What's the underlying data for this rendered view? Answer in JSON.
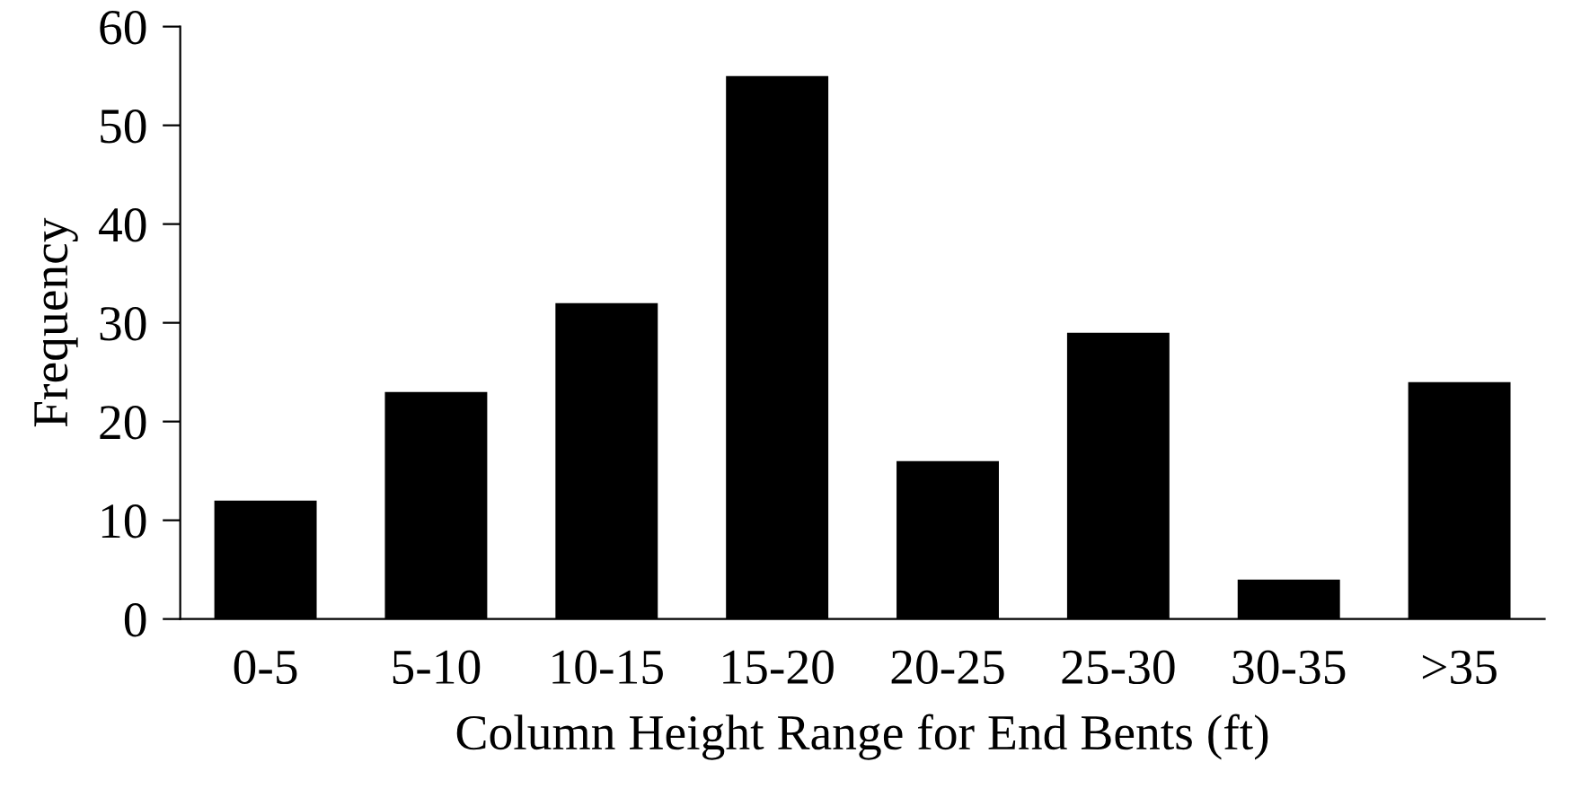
{
  "chart_data": {
    "type": "bar",
    "xlabel": "Column Height Range for End Bents (ft)",
    "ylabel": "Frequency",
    "categories": [
      "0-5",
      "5-10",
      "10-15",
      "15-20",
      "20-25",
      "25-30",
      "30-35",
      ">35"
    ],
    "values": [
      12,
      23,
      32,
      55,
      16,
      29,
      4,
      24
    ],
    "color": "#000000",
    "ylim": [
      0,
      60
    ],
    "yticks": [
      0,
      10,
      20,
      30,
      40,
      50,
      60
    ],
    "grid": false,
    "legend": false
  }
}
